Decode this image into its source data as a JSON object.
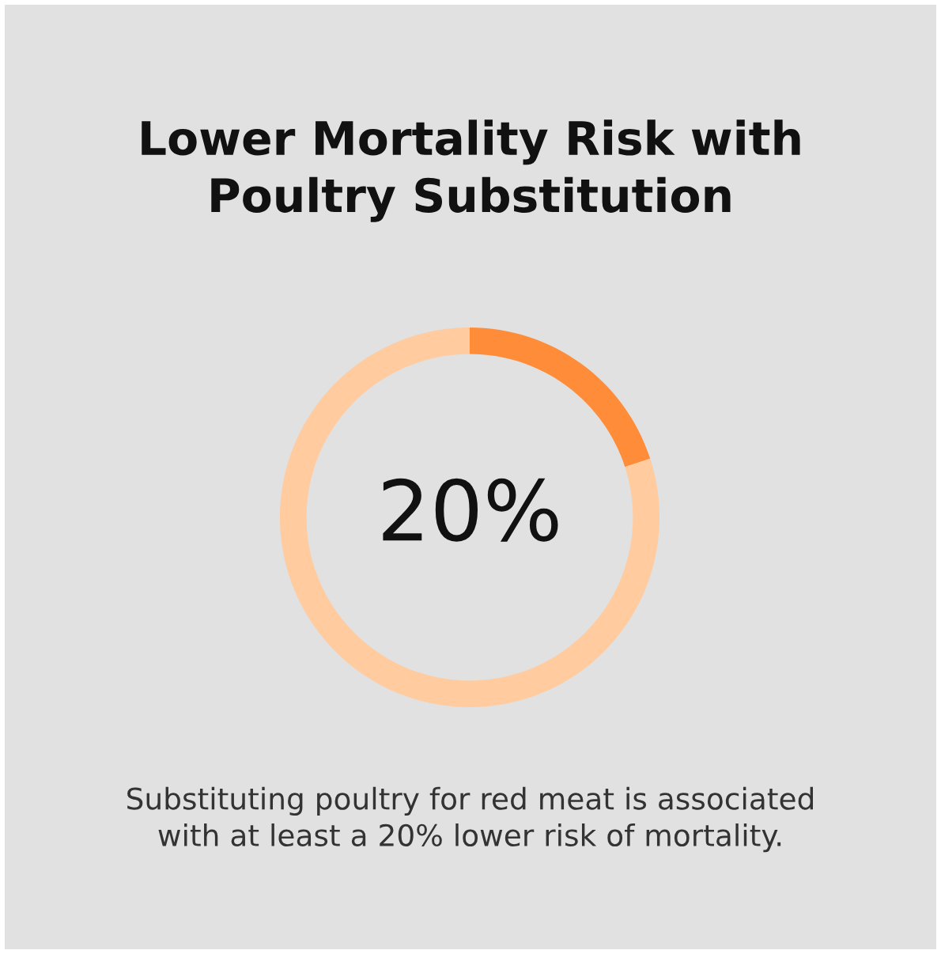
{
  "chart_data": {
    "type": "donut",
    "title": "Lower Mortality Risk with\nPoultry Substitution",
    "categories": [
      null,
      null
    ],
    "values": [
      20,
      80
    ],
    "colors": [
      "#ff8c38",
      "#ffcb9f"
    ],
    "value_labels": [
      "20%",
      null
    ],
    "annotations": [
      "Substituting poultry for red meat is associated\nwith at least a 20% lower risk of mortality."
    ]
  }
}
